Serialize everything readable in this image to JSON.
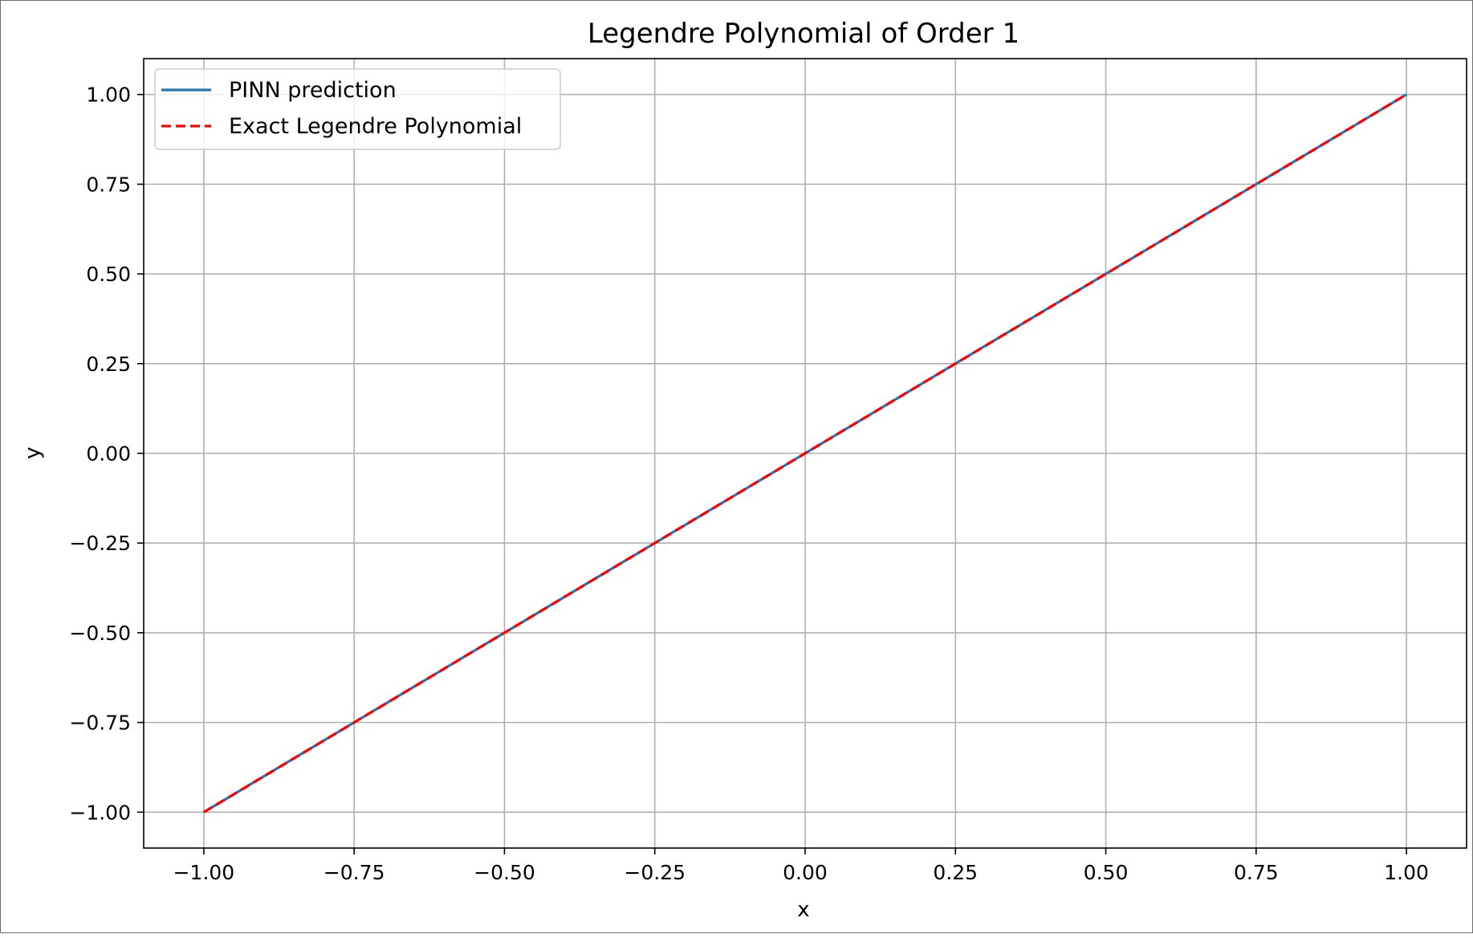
{
  "chart_data": {
    "type": "line",
    "title": "Legendre Polynomial of Order 1",
    "xlabel": "x",
    "ylabel": "y",
    "xlim": [
      -1.1,
      1.1
    ],
    "ylim": [
      -1.1,
      1.1
    ],
    "grid": true,
    "legend_position": "top-left",
    "x_ticks": [
      -1.0,
      -0.75,
      -0.5,
      -0.25,
      0.0,
      0.25,
      0.5,
      0.75,
      1.0
    ],
    "x_tick_labels": [
      "−1.00",
      "−0.75",
      "−0.50",
      "−0.25",
      "0.00",
      "0.25",
      "0.50",
      "0.75",
      "1.00"
    ],
    "y_ticks": [
      -1.0,
      -0.75,
      -0.5,
      -0.25,
      0.0,
      0.25,
      0.5,
      0.75,
      1.0
    ],
    "y_tick_labels": [
      "−1.00",
      "−0.75",
      "−0.50",
      "−0.25",
      "0.00",
      "0.25",
      "0.50",
      "0.75",
      "1.00"
    ],
    "series": [
      {
        "name": "PINN prediction",
        "color": "#1f77b4",
        "style": "solid",
        "x": [
          -1.0,
          -0.75,
          -0.5,
          -0.25,
          0.0,
          0.25,
          0.5,
          0.75,
          1.0
        ],
        "y": [
          -1.0,
          -0.75,
          -0.5,
          -0.25,
          0.0,
          0.25,
          0.5,
          0.75,
          1.0
        ]
      },
      {
        "name": "Exact Legendre Polynomial",
        "color": "#ff0000",
        "style": "dashed",
        "x": [
          -1.0,
          -0.75,
          -0.5,
          -0.25,
          0.0,
          0.25,
          0.5,
          0.75,
          1.0
        ],
        "y": [
          -1.0,
          -0.75,
          -0.5,
          -0.25,
          0.0,
          0.25,
          0.5,
          0.75,
          1.0
        ]
      }
    ]
  }
}
